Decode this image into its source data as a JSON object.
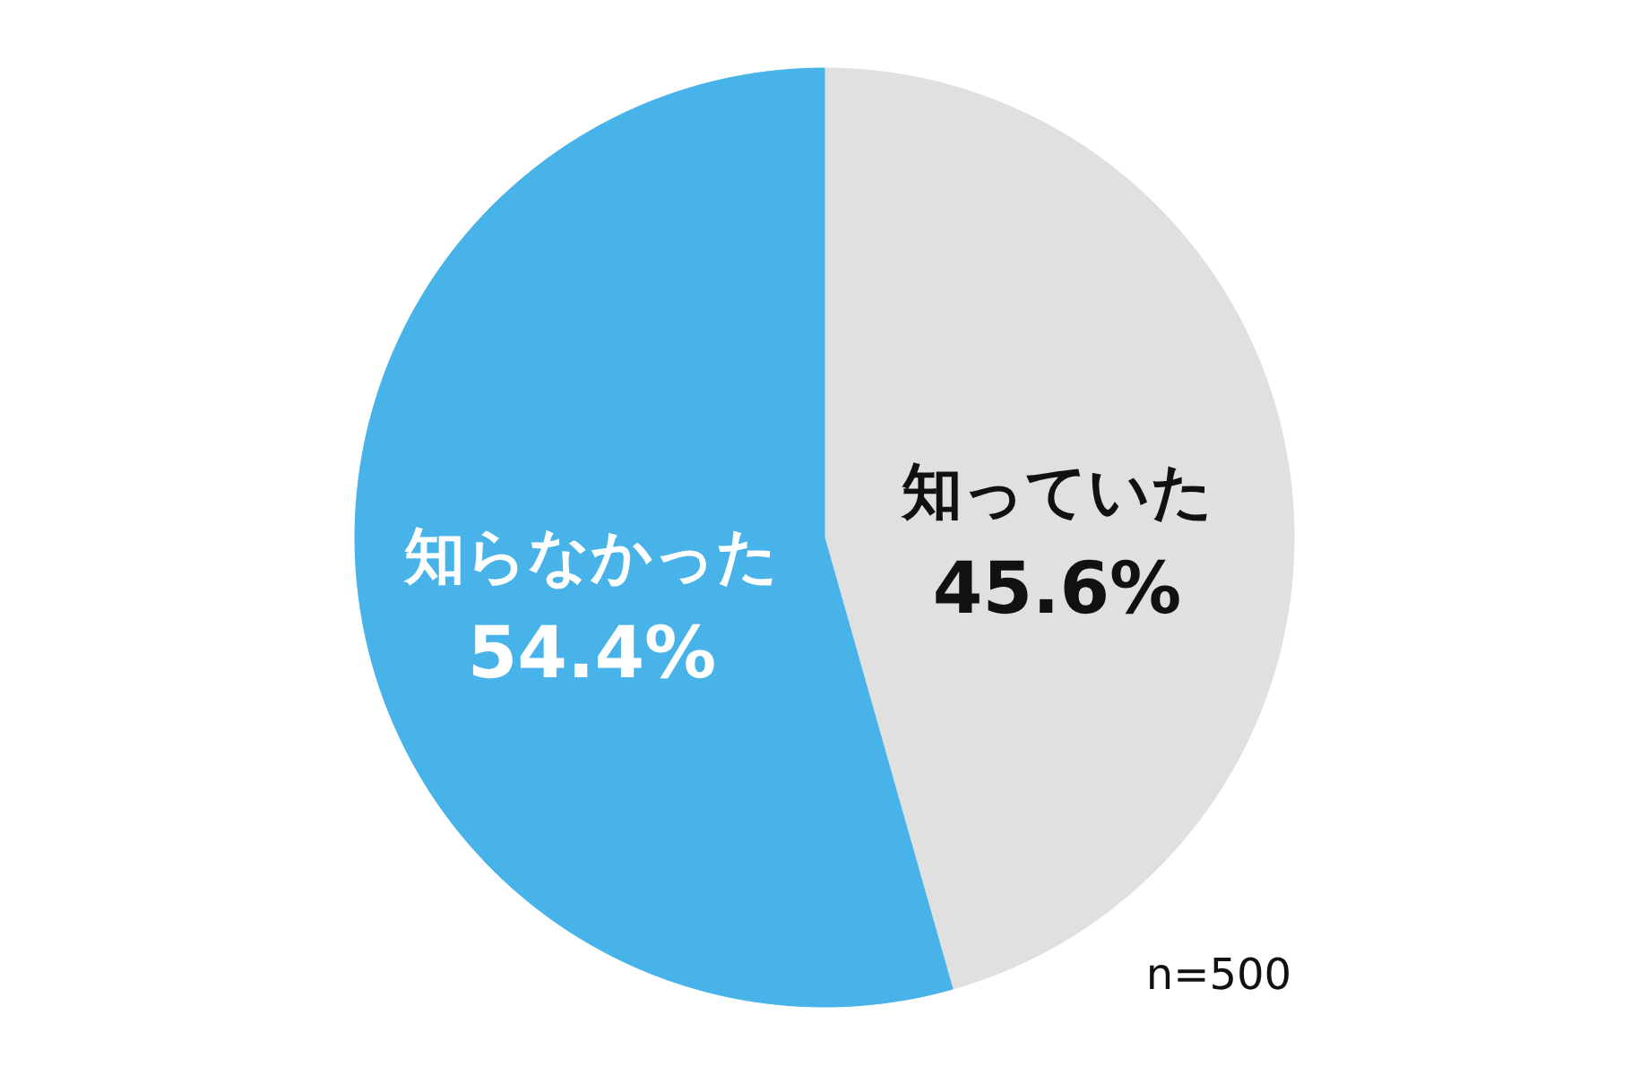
{
  "chart_data": {
    "type": "pie",
    "categories": [
      "知っていた",
      "知らなかった"
    ],
    "values": [
      45.6,
      54.4
    ],
    "colors": [
      "#e0e0e0",
      "#48b3e8"
    ],
    "value_labels": [
      "45.6%",
      "54.4%"
    ],
    "annotations": [
      "n=500"
    ]
  }
}
